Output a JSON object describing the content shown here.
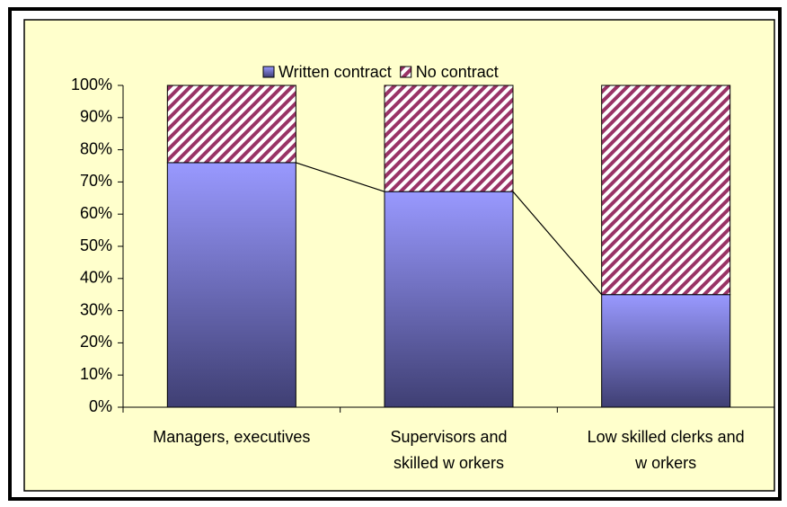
{
  "chart_data": {
    "type": "bar",
    "stacked": true,
    "categories": [
      "Managers, executives",
      "Supervisors and skilled w orkers",
      "Low skilled clerks and w orkers"
    ],
    "series": [
      {
        "name": "Written contract",
        "color": "#9999ff",
        "values": [
          76,
          67,
          35
        ]
      },
      {
        "name": "No contract",
        "color": "#993366",
        "values": [
          24,
          33,
          65
        ]
      }
    ],
    "ylim": [
      0,
      100
    ],
    "yticks": [
      {
        "value": 0,
        "label": "0%"
      },
      {
        "value": 10,
        "label": "10%"
      },
      {
        "value": 20,
        "label": "20%"
      },
      {
        "value": 30,
        "label": "30%"
      },
      {
        "value": 40,
        "label": "40%"
      },
      {
        "value": 50,
        "label": "50%"
      },
      {
        "value": 60,
        "label": "60%"
      },
      {
        "value": 70,
        "label": "70%"
      },
      {
        "value": 80,
        "label": "80%"
      },
      {
        "value": 90,
        "label": "90%"
      },
      {
        "value": 100,
        "label": "100%"
      }
    ],
    "legend": "top",
    "series_lines": true
  }
}
